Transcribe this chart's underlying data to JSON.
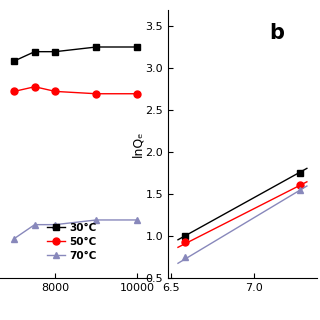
{
  "left_panel": {
    "series": [
      {
        "label": "30°C",
        "color": "black",
        "marker": "s",
        "x": [
          7000,
          7500,
          8000,
          9000,
          10000
        ],
        "y": [
          3.48,
          3.52,
          3.52,
          3.54,
          3.54
        ]
      },
      {
        "label": "50°C",
        "color": "red",
        "marker": "o",
        "x": [
          7000,
          7500,
          8000,
          9000,
          10000
        ],
        "y": [
          3.35,
          3.37,
          3.35,
          3.34,
          3.34
        ]
      },
      {
        "label": "70°C",
        "color": "#8888bb",
        "marker": "^",
        "x": [
          7000,
          7500,
          8000,
          9000,
          10000
        ],
        "y": [
          2.72,
          2.78,
          2.78,
          2.8,
          2.8
        ]
      }
    ],
    "xlim": [
      6500,
      10300
    ],
    "xticks": [
      8000,
      10000
    ],
    "ylim": [
      2.55,
      3.7
    ],
    "yticks": [],
    "ylabel": "",
    "xlabel": ""
  },
  "right_panel": {
    "series": [
      {
        "label": "30°C",
        "color": "black",
        "marker": "s",
        "x": [
          6.58,
          7.28
        ],
        "y": [
          1.01,
          1.75
        ],
        "fit_x": [
          6.54,
          7.32
        ],
        "fit_y": [
          0.96,
          1.81
        ]
      },
      {
        "label": "50°C",
        "color": "red",
        "marker": "o",
        "x": [
          6.58,
          7.28
        ],
        "y": [
          0.93,
          1.61
        ],
        "fit_x": [
          6.54,
          7.32
        ],
        "fit_y": [
          0.87,
          1.65
        ]
      },
      {
        "label": "70°C",
        "color": "#8888bb",
        "marker": "^",
        "x": [
          6.58,
          7.28
        ],
        "y": [
          0.75,
          1.55
        ],
        "fit_x": [
          6.54,
          7.32
        ],
        "fit_y": [
          0.68,
          1.6
        ]
      }
    ],
    "xlim": [
      6.48,
      7.38
    ],
    "xticks": [
      6.5,
      7.0
    ],
    "ylim": [
      0.5,
      3.7
    ],
    "yticks": [
      0.5,
      1.0,
      1.5,
      2.0,
      2.5,
      3.0,
      3.5
    ],
    "ylabel": "lnQₑ",
    "xlabel": "",
    "label_b": "b"
  },
  "legend": {
    "labels": [
      "30°C",
      "50°C",
      "70°C"
    ],
    "colors": [
      "black",
      "red",
      "#8888bb"
    ],
    "markers": [
      "s",
      "o",
      "^"
    ]
  }
}
